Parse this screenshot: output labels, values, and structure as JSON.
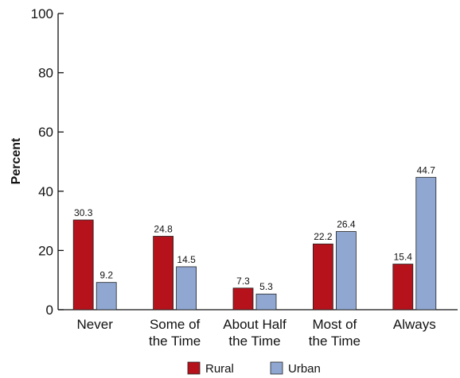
{
  "chart_data": {
    "type": "bar",
    "ylabel": "Percent",
    "xlabel": "",
    "ylim": [
      0,
      100
    ],
    "yticks": [
      0,
      20,
      40,
      60,
      80,
      100
    ],
    "categories": [
      [
        "Never"
      ],
      [
        "Some of",
        "the Time"
      ],
      [
        "About Half",
        "the Time"
      ],
      [
        "Most of",
        "the Time"
      ],
      [
        "Always"
      ]
    ],
    "series": [
      {
        "name": "Rural",
        "color": "#b5121b",
        "values": [
          30.3,
          24.8,
          7.3,
          22.2,
          15.4
        ]
      },
      {
        "name": "Urban",
        "color": "#8fa7d1",
        "values": [
          9.2,
          14.5,
          5.3,
          26.4,
          44.7
        ]
      }
    ],
    "data_labels": [
      [
        "30.3",
        "24.8",
        "7.3",
        "22.2",
        "15.4"
      ],
      [
        "9.2",
        "14.5",
        "5.3",
        "26.4",
        "44.7"
      ]
    ],
    "legend": "bottom-center",
    "grid": false
  }
}
